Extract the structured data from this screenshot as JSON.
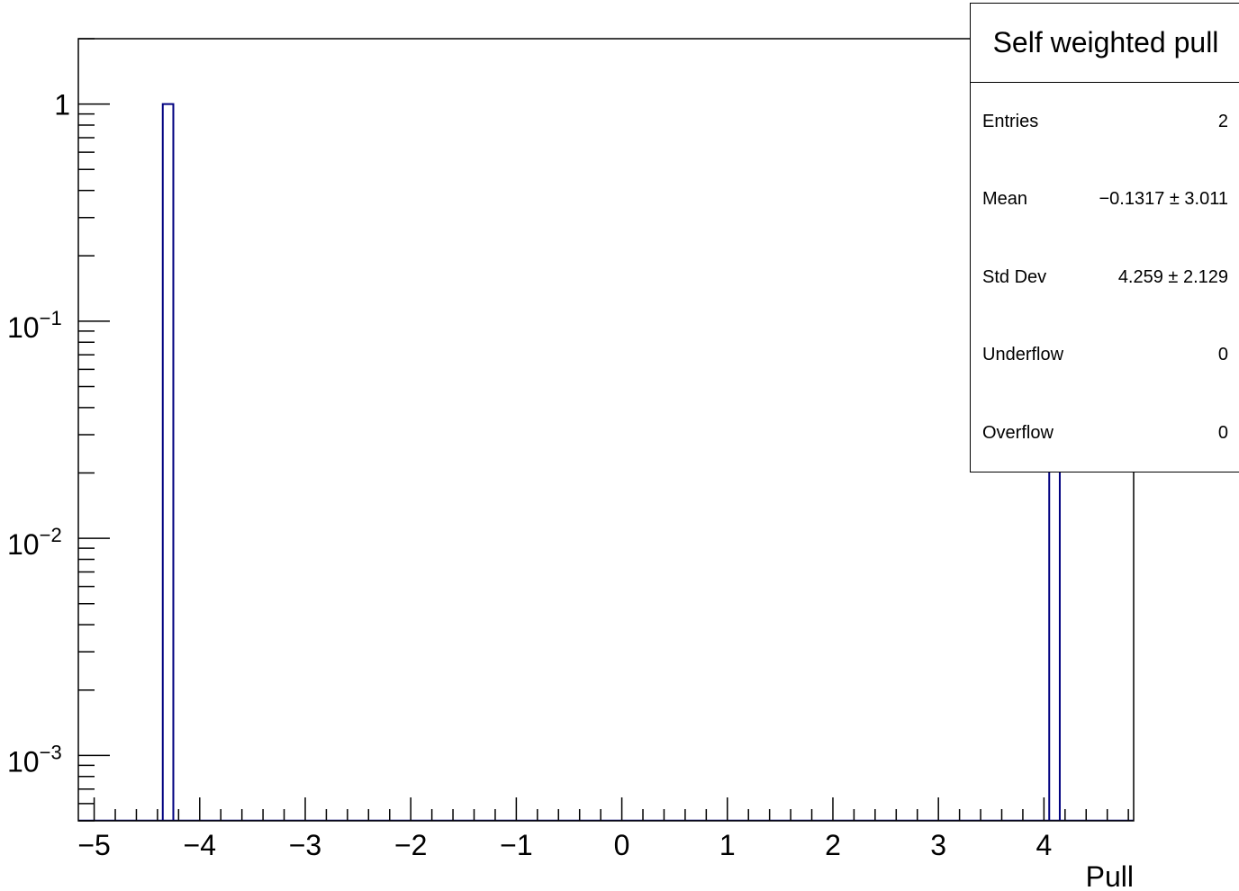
{
  "chart_data": {
    "type": "bar",
    "subtype": "histogram",
    "xlabel": "Pull",
    "ylabel": "",
    "x_scale": "linear",
    "y_scale": "log",
    "xlim": [
      -5.15,
      4.85
    ],
    "ylim": [
      0.0005,
      2
    ],
    "x_ticks": [
      "−5",
      "−4",
      "−3",
      "−2",
      "−1",
      "0",
      "1",
      "2",
      "3",
      "4"
    ],
    "y_ticks": [
      {
        "base": "1",
        "exp": ""
      },
      {
        "base": "10",
        "exp": "−1"
      },
      {
        "base": "10",
        "exp": "−2"
      },
      {
        "base": "10",
        "exp": "−3"
      }
    ],
    "bin_width": 0.1,
    "bins": [
      {
        "x_low": -4.35,
        "x_high": -4.25,
        "value": 1
      },
      {
        "x_low": 4.05,
        "x_high": 4.15,
        "value": 1
      }
    ],
    "line_color": "#000080",
    "grid": false,
    "stats_box": {
      "title": "Self weighted pull",
      "rows": [
        {
          "label": "Entries",
          "value": "2"
        },
        {
          "label": "Mean",
          "value": "−0.1317 ±  3.011"
        },
        {
          "label": "Std Dev",
          "value": "4.259 ±  2.129"
        },
        {
          "label": "Underflow",
          "value": "0"
        },
        {
          "label": "Overflow",
          "value": "0"
        }
      ],
      "placement": "top-right"
    }
  }
}
